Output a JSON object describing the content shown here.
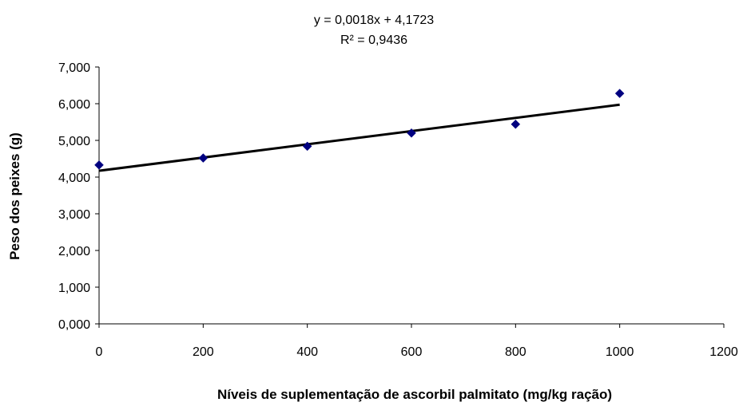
{
  "chart_data": {
    "type": "scatter",
    "xlabel": "Níveis de suplementação de ascorbil palmitato (mg/kg ração)",
    "ylabel": "Peso dos peixes (g)",
    "xlim": [
      0,
      1200
    ],
    "ylim": [
      0,
      7
    ],
    "x_ticks": [
      0,
      200,
      400,
      600,
      800,
      1000,
      1200
    ],
    "x_tick_labels": [
      "0",
      "200",
      "400",
      "600",
      "800",
      "1000",
      "1200"
    ],
    "y_ticks": [
      0,
      1,
      2,
      3,
      4,
      5,
      6,
      7
    ],
    "y_tick_labels": [
      "0,000",
      "1,000",
      "2,000",
      "3,000",
      "4,000",
      "5,000",
      "6,000",
      "7,000"
    ],
    "grid": false,
    "legend": "none",
    "series": [
      {
        "marker": "diamond",
        "color": "#000080",
        "points": [
          {
            "x": 0,
            "y": 4.33
          },
          {
            "x": 200,
            "y": 4.52
          },
          {
            "x": 400,
            "y": 4.84
          },
          {
            "x": 600,
            "y": 5.2
          },
          {
            "x": 800,
            "y": 5.44
          },
          {
            "x": 1000,
            "y": 6.28
          }
        ]
      }
    ],
    "trendline": {
      "type": "linear",
      "slope": 0.0018,
      "intercept": 4.1723,
      "x_range": [
        0,
        1000
      ],
      "color": "#000000",
      "equation_label": "y = 0,0018x + 4,1723",
      "r2_label": "R² = 0,9436"
    }
  }
}
